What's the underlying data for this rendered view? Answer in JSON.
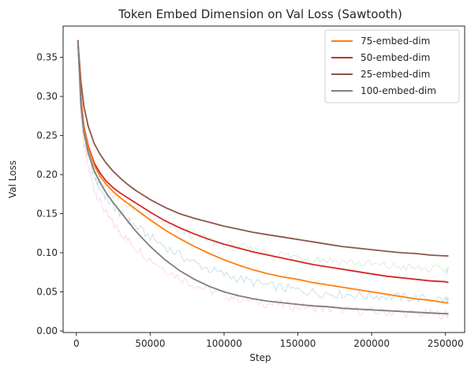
{
  "chart_data": {
    "type": "line",
    "title": "Token Embed Dimension on Val Loss (Sawtooth)",
    "xlabel": "Step",
    "ylabel": "Val Loss",
    "xlim": [
      -9000,
      263000
    ],
    "ylim": [
      -0.002,
      0.39
    ],
    "xticks": [
      0,
      50000,
      100000,
      150000,
      200000,
      250000
    ],
    "yticks": [
      0.0,
      0.05,
      0.1,
      0.15,
      0.2,
      0.25,
      0.3,
      0.35
    ],
    "grid": false,
    "legend_position": "top-right",
    "x": [
      1000,
      3000,
      5000,
      8000,
      12000,
      16000,
      20000,
      25000,
      30000,
      35000,
      40000,
      50000,
      60000,
      70000,
      80000,
      90000,
      100000,
      110000,
      120000,
      130000,
      140000,
      150000,
      160000,
      170000,
      180000,
      190000,
      200000,
      210000,
      220000,
      230000,
      240000,
      250000,
      252000
    ],
    "series": [
      {
        "name": "75-embed-dim",
        "color": "#ff7f0e",
        "values": [
          0.372,
          0.3,
          0.262,
          0.235,
          0.212,
          0.198,
          0.188,
          0.178,
          0.17,
          0.163,
          0.156,
          0.142,
          0.129,
          0.118,
          0.108,
          0.099,
          0.091,
          0.084,
          0.078,
          0.073,
          0.069,
          0.066,
          0.062,
          0.059,
          0.056,
          0.053,
          0.05,
          0.047,
          0.044,
          0.041,
          0.039,
          0.036,
          0.036
        ]
      },
      {
        "name": "50-embed-dim",
        "color": "#d62728",
        "values": [
          0.372,
          0.3,
          0.263,
          0.237,
          0.215,
          0.202,
          0.192,
          0.183,
          0.176,
          0.17,
          0.164,
          0.152,
          0.141,
          0.132,
          0.124,
          0.117,
          0.111,
          0.106,
          0.101,
          0.097,
          0.093,
          0.089,
          0.085,
          0.082,
          0.079,
          0.076,
          0.073,
          0.07,
          0.068,
          0.066,
          0.064,
          0.063,
          0.062
        ]
      },
      {
        "name": "25-embed-dim",
        "color": "#8c564b",
        "values": [
          0.372,
          0.32,
          0.288,
          0.262,
          0.24,
          0.226,
          0.215,
          0.204,
          0.195,
          0.187,
          0.18,
          0.168,
          0.158,
          0.15,
          0.144,
          0.139,
          0.134,
          0.13,
          0.126,
          0.123,
          0.12,
          0.117,
          0.114,
          0.111,
          0.108,
          0.106,
          0.104,
          0.102,
          0.1,
          0.099,
          0.097,
          0.096,
          0.096
        ]
      },
      {
        "name": "100-embed-dim",
        "color": "#7f7f7f",
        "values": [
          0.372,
          0.29,
          0.255,
          0.228,
          0.205,
          0.19,
          0.177,
          0.164,
          0.152,
          0.14,
          0.128,
          0.108,
          0.091,
          0.077,
          0.066,
          0.057,
          0.05,
          0.045,
          0.041,
          0.038,
          0.036,
          0.034,
          0.032,
          0.031,
          0.029,
          0.028,
          0.027,
          0.026,
          0.025,
          0.024,
          0.023,
          0.022,
          0.022
        ]
      }
    ],
    "raw_series": [
      {
        "color": "#ffbbd8",
        "values": [
          0.372,
          0.275,
          0.238,
          0.21,
          0.183,
          0.165,
          0.15,
          0.137,
          0.126,
          0.116,
          0.107,
          0.092,
          0.079,
          0.068,
          0.059,
          0.052,
          0.046,
          0.042,
          0.038,
          0.035,
          0.033,
          0.031,
          0.03,
          0.028,
          0.027,
          0.026,
          0.025,
          0.024,
          0.023,
          0.022,
          0.022,
          0.021,
          0.021
        ]
      },
      {
        "color": "#aac8dc",
        "values": [
          0.372,
          0.285,
          0.25,
          0.222,
          0.198,
          0.182,
          0.17,
          0.16,
          0.15,
          0.142,
          0.134,
          0.12,
          0.108,
          0.097,
          0.087,
          0.079,
          0.072,
          0.067,
          0.062,
          0.058,
          0.055,
          0.052,
          0.05,
          0.048,
          0.047,
          0.046,
          0.045,
          0.044,
          0.043,
          0.042,
          0.041,
          0.04,
          0.04
        ]
      },
      {
        "color": "#c8dcc8",
        "values": [
          0.372,
          0.292,
          0.256,
          0.23,
          0.207,
          0.193,
          0.183,
          0.174,
          0.167,
          0.161,
          0.155,
          0.145,
          0.137,
          0.129,
          0.122,
          0.116,
          0.111,
          0.107,
          0.103,
          0.1,
          0.097,
          0.095,
          0.093,
          0.091,
          0.089,
          0.087,
          0.085,
          0.083,
          0.082,
          0.08,
          0.079,
          0.078,
          0.078
        ]
      }
    ]
  }
}
